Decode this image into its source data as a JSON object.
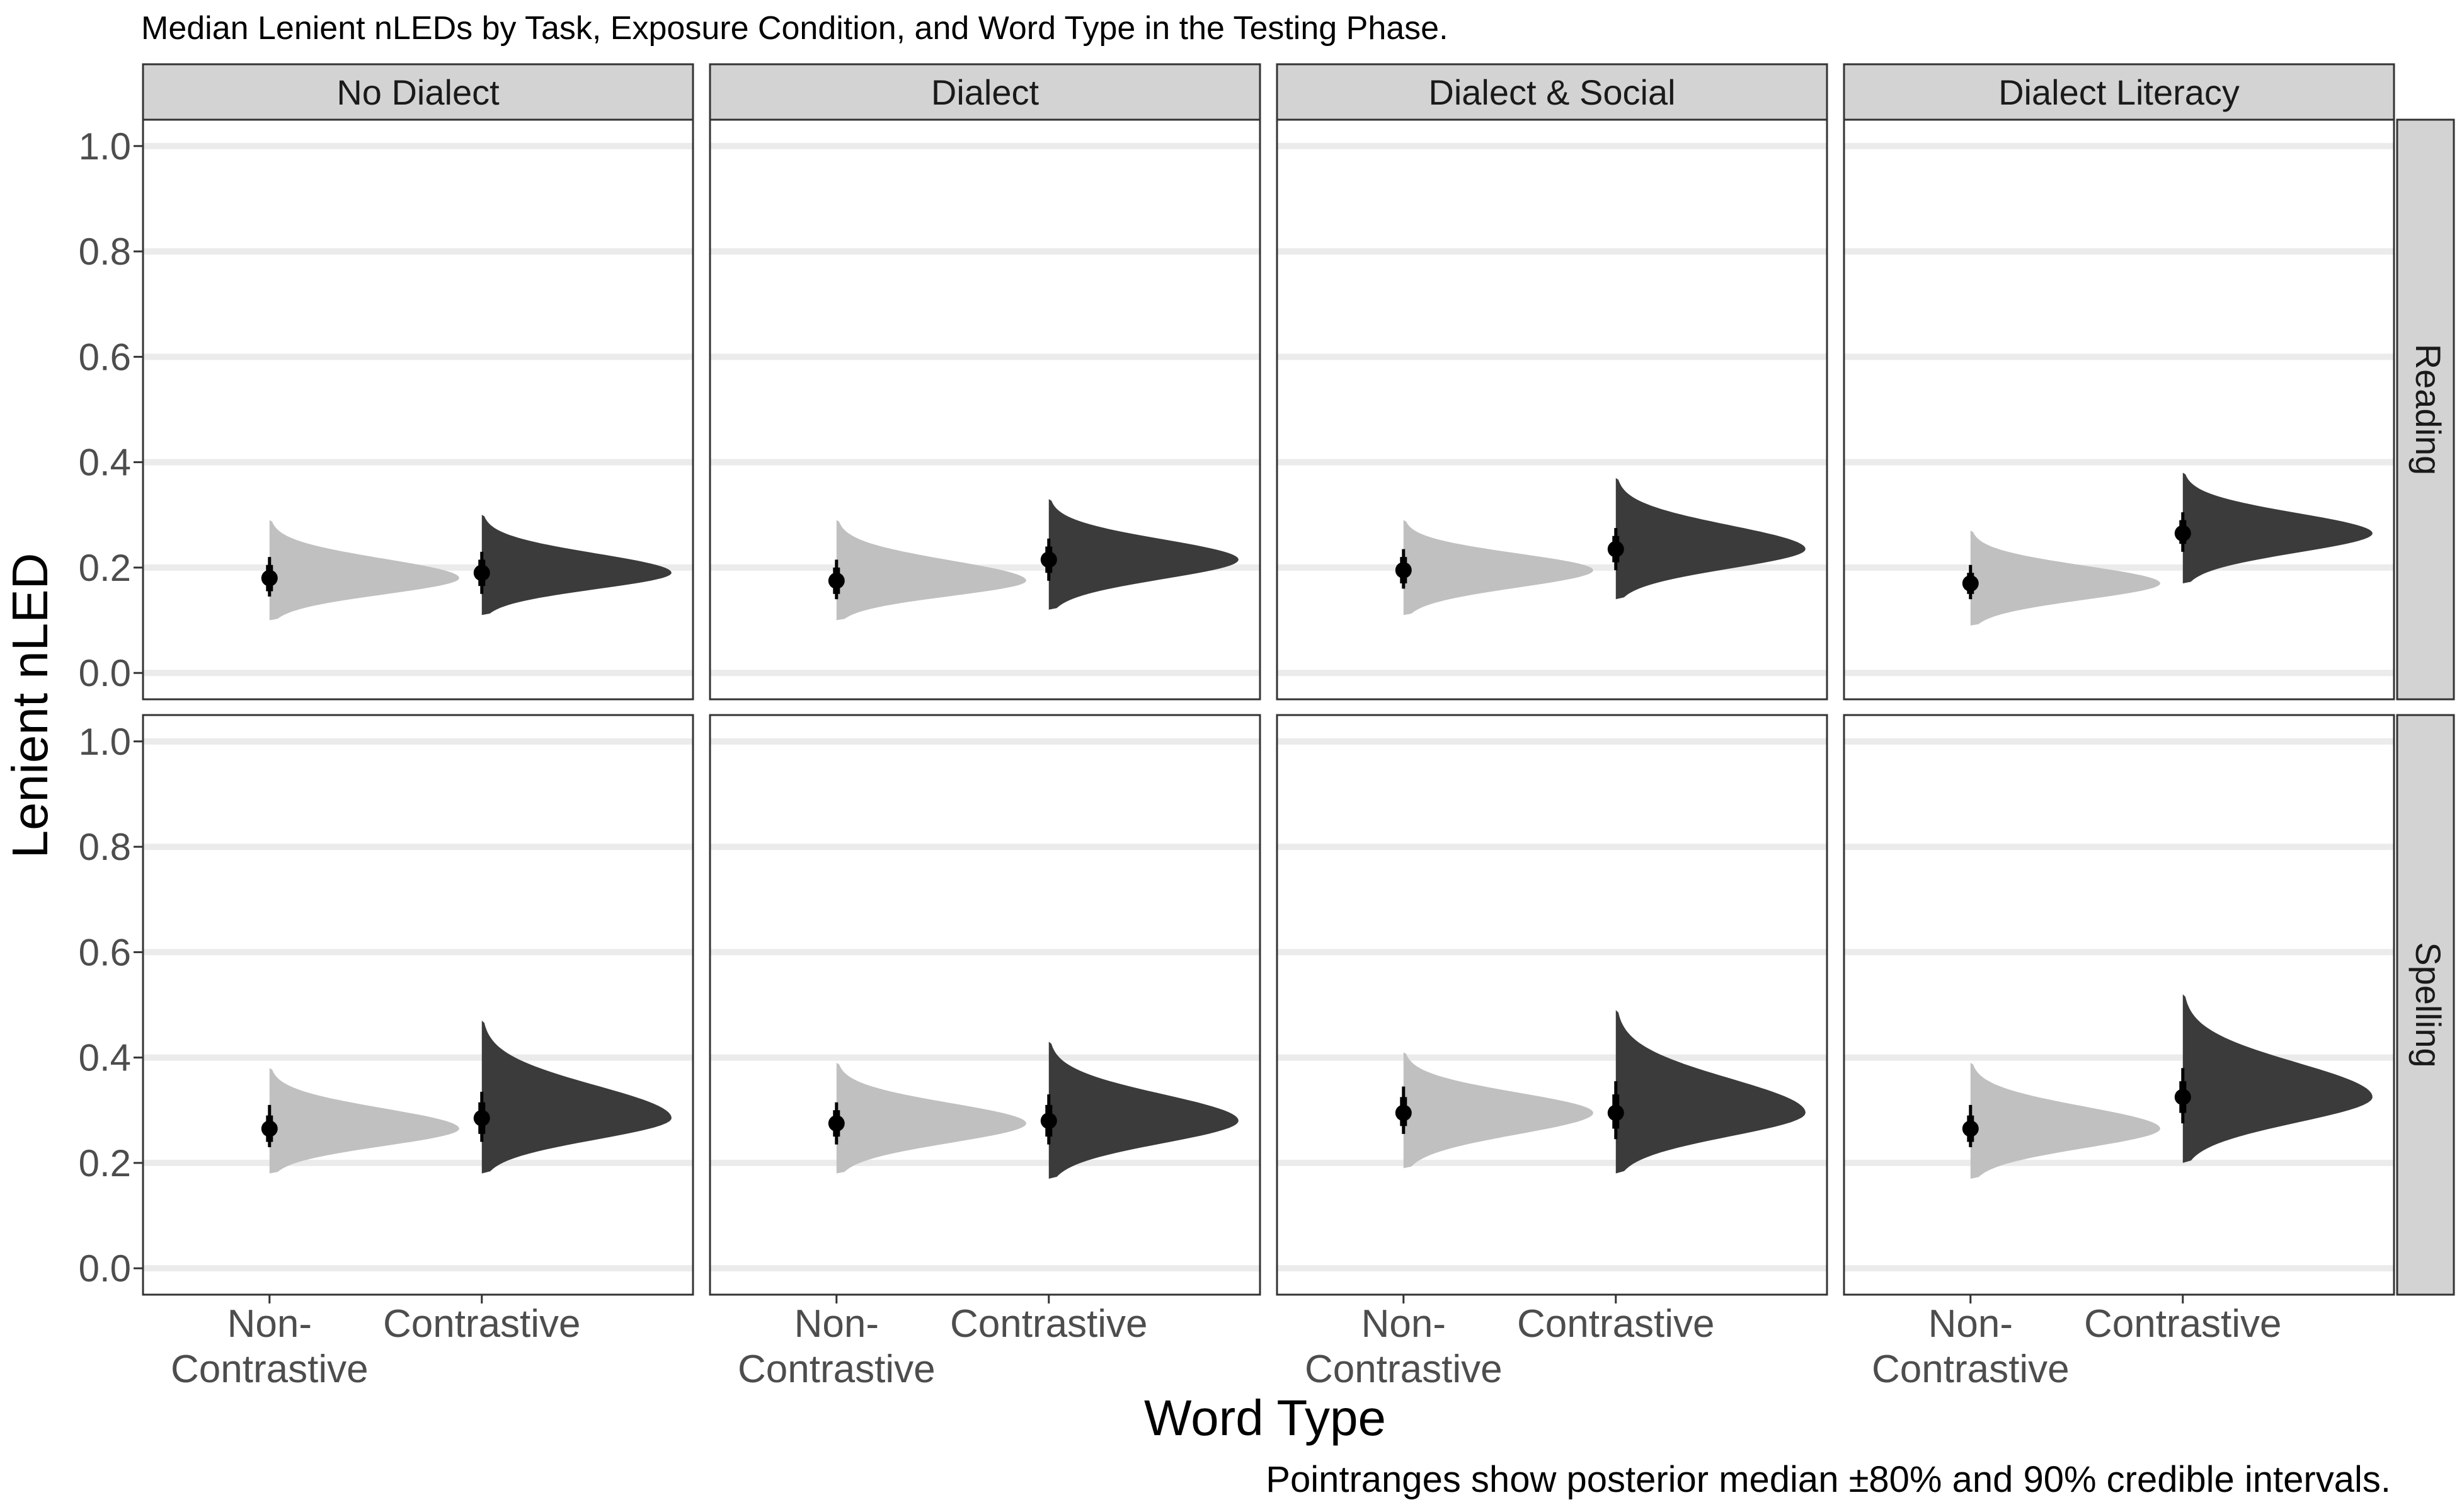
{
  "chart_data": {
    "type": "half-eye",
    "title": "Median Lenient nLEDs by Task, Exposure Condition, and Word Type in the Testing Phase.",
    "xlabel": "Word Type",
    "ylabel": "Lenient nLED",
    "caption": "Pointranges show posterior median ±80% and 90% credible intervals.",
    "ylim": [
      -0.05,
      1.05
    ],
    "yticks": [
      "0.0",
      "0.2",
      "0.4",
      "0.6",
      "0.8",
      "1.0"
    ],
    "ytick_values": [
      0.0,
      0.2,
      0.4,
      0.6,
      0.8,
      1.0
    ],
    "grid": true,
    "legend": "none",
    "colors": {
      "non_contrastive": "#c0c0c0",
      "contrastive": "#3b3b3b",
      "strip": "#d3d3d3",
      "grid": "#ebebeb"
    },
    "columns": [
      "No Dialect",
      "Dialect",
      "Dialect & Social",
      "Dialect Literacy"
    ],
    "rows": [
      "Reading",
      "Spelling"
    ],
    "categories": [
      {
        "key": "non_contrastive",
        "line1": "Non-",
        "line2": "Contrastive"
      },
      {
        "key": "contrastive",
        "line1": "Contrastive",
        "line2": ""
      }
    ],
    "panels": [
      {
        "row": "Reading",
        "column": "No Dialect",
        "groups": [
          {
            "category": "Non-Contrastive",
            "median": 0.18,
            "ci80": [
              0.155,
              0.205
            ],
            "ci90": [
              0.145,
              0.22
            ],
            "dist_min": 0.1,
            "dist_max": 0.29
          },
          {
            "category": "Contrastive",
            "median": 0.19,
            "ci80": [
              0.165,
              0.215
            ],
            "ci90": [
              0.15,
              0.23
            ],
            "dist_min": 0.11,
            "dist_max": 0.3
          }
        ]
      },
      {
        "row": "Reading",
        "column": "Dialect",
        "groups": [
          {
            "category": "Non-Contrastive",
            "median": 0.175,
            "ci80": [
              0.15,
              0.2
            ],
            "ci90": [
              0.14,
              0.215
            ],
            "dist_min": 0.1,
            "dist_max": 0.29
          },
          {
            "category": "Contrastive",
            "median": 0.215,
            "ci80": [
              0.19,
              0.24
            ],
            "ci90": [
              0.175,
              0.255
            ],
            "dist_min": 0.12,
            "dist_max": 0.33
          }
        ]
      },
      {
        "row": "Reading",
        "column": "Dialect & Social",
        "groups": [
          {
            "category": "Non-Contrastive",
            "median": 0.195,
            "ci80": [
              0.17,
              0.22
            ],
            "ci90": [
              0.16,
              0.235
            ],
            "dist_min": 0.11,
            "dist_max": 0.29
          },
          {
            "category": "Contrastive",
            "median": 0.235,
            "ci80": [
              0.21,
              0.26
            ],
            "ci90": [
              0.195,
              0.275
            ],
            "dist_min": 0.14,
            "dist_max": 0.37
          }
        ]
      },
      {
        "row": "Reading",
        "column": "Dialect Literacy",
        "groups": [
          {
            "category": "Non-Contrastive",
            "median": 0.17,
            "ci80": [
              0.15,
              0.19
            ],
            "ci90": [
              0.14,
              0.205
            ],
            "dist_min": 0.09,
            "dist_max": 0.27
          },
          {
            "category": "Contrastive",
            "median": 0.265,
            "ci80": [
              0.245,
              0.29
            ],
            "ci90": [
              0.23,
              0.305
            ],
            "dist_min": 0.17,
            "dist_max": 0.38
          }
        ]
      },
      {
        "row": "Spelling",
        "column": "No Dialect",
        "groups": [
          {
            "category": "Non-Contrastive",
            "median": 0.265,
            "ci80": [
              0.24,
              0.29
            ],
            "ci90": [
              0.23,
              0.31
            ],
            "dist_min": 0.18,
            "dist_max": 0.38
          },
          {
            "category": "Contrastive",
            "median": 0.285,
            "ci80": [
              0.255,
              0.315
            ],
            "ci90": [
              0.24,
              0.335
            ],
            "dist_min": 0.18,
            "dist_max": 0.47
          }
        ]
      },
      {
        "row": "Spelling",
        "column": "Dialect",
        "groups": [
          {
            "category": "Non-Contrastive",
            "median": 0.275,
            "ci80": [
              0.25,
              0.3
            ],
            "ci90": [
              0.235,
              0.315
            ],
            "dist_min": 0.18,
            "dist_max": 0.39
          },
          {
            "category": "Contrastive",
            "median": 0.28,
            "ci80": [
              0.25,
              0.31
            ],
            "ci90": [
              0.235,
              0.33
            ],
            "dist_min": 0.17,
            "dist_max": 0.43
          }
        ]
      },
      {
        "row": "Spelling",
        "column": "Dialect & Social",
        "groups": [
          {
            "category": "Non-Contrastive",
            "median": 0.295,
            "ci80": [
              0.27,
              0.325
            ],
            "ci90": [
              0.255,
              0.345
            ],
            "dist_min": 0.19,
            "dist_max": 0.41
          },
          {
            "category": "Contrastive",
            "median": 0.295,
            "ci80": [
              0.265,
              0.33
            ],
            "ci90": [
              0.245,
              0.355
            ],
            "dist_min": 0.18,
            "dist_max": 0.49
          }
        ]
      },
      {
        "row": "Spelling",
        "column": "Dialect Literacy",
        "groups": [
          {
            "category": "Non-Contrastive",
            "median": 0.265,
            "ci80": [
              0.24,
              0.29
            ],
            "ci90": [
              0.23,
              0.31
            ],
            "dist_min": 0.17,
            "dist_max": 0.39
          },
          {
            "category": "Contrastive",
            "median": 0.325,
            "ci80": [
              0.295,
              0.355
            ],
            "ci90": [
              0.275,
              0.38
            ],
            "dist_min": 0.2,
            "dist_max": 0.52
          }
        ]
      }
    ]
  }
}
